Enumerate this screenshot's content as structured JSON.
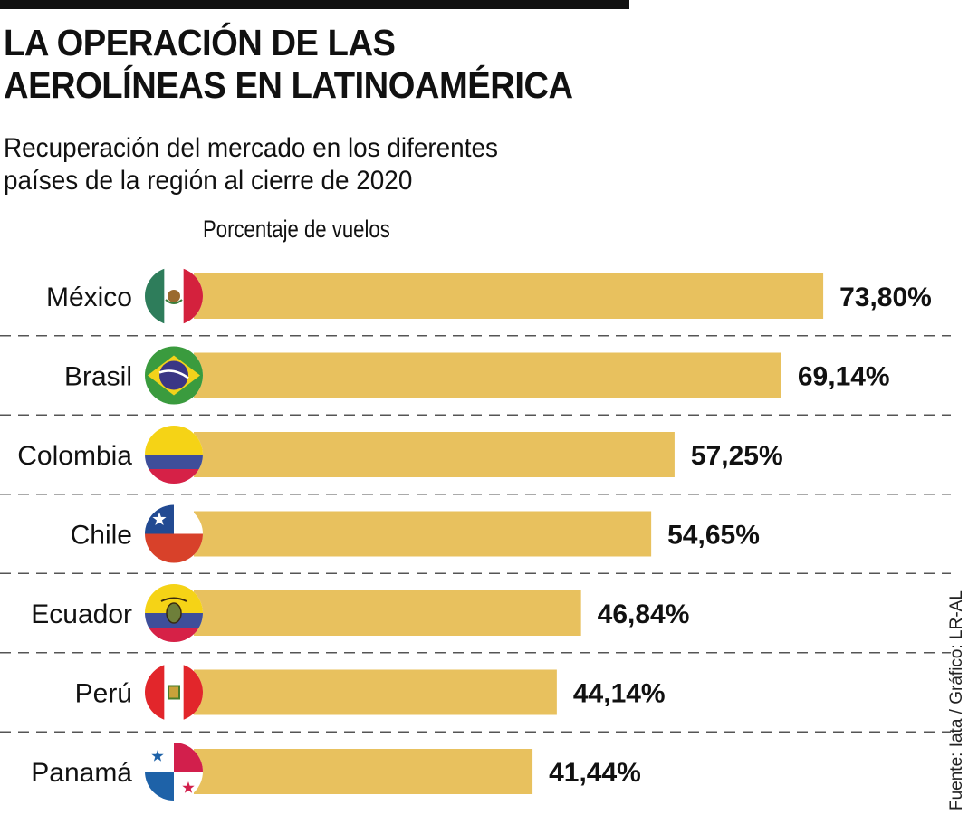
{
  "header": {
    "title_line1": "LA OPERACIÓN DE LAS",
    "title_line2": "AEROLÍNEAS EN LATINOAMÉRICA",
    "subtitle_line1": "Recuperación del mercado en los diferentes",
    "subtitle_line2": "países de la región al cierre de 2020"
  },
  "source": "Fuente: Iata / Gráfico: LR-AL",
  "colors": {
    "bar": "#E8C15E",
    "text": "#111111",
    "divider": "#555555"
  },
  "chart_data": {
    "type": "bar",
    "orientation": "horizontal",
    "title": "LA OPERACIÓN DE LAS AEROLÍNEAS EN LATINOAMÉRICA",
    "subtitle": "Recuperación del mercado en los diferentes países de la región al cierre de 2020",
    "xlabel": "Porcentaje de vuelos",
    "ylabel": "",
    "categories": [
      "México",
      "Brasil",
      "Colombia",
      "Chile",
      "Ecuador",
      "Perú",
      "Panamá"
    ],
    "values": [
      73.8,
      69.14,
      57.25,
      54.65,
      46.84,
      44.14,
      41.44
    ],
    "value_labels": [
      "73,80%",
      "69,14%",
      "57,25%",
      "54,65%",
      "46,84%",
      "44,14%",
      "41,44%"
    ],
    "flags": [
      "mexico-flag",
      "brazil-flag",
      "colombia-flag",
      "chile-flag",
      "ecuador-flag",
      "peru-flag",
      "panama-flag"
    ],
    "unit": "%",
    "grid": false,
    "legend": "none"
  }
}
